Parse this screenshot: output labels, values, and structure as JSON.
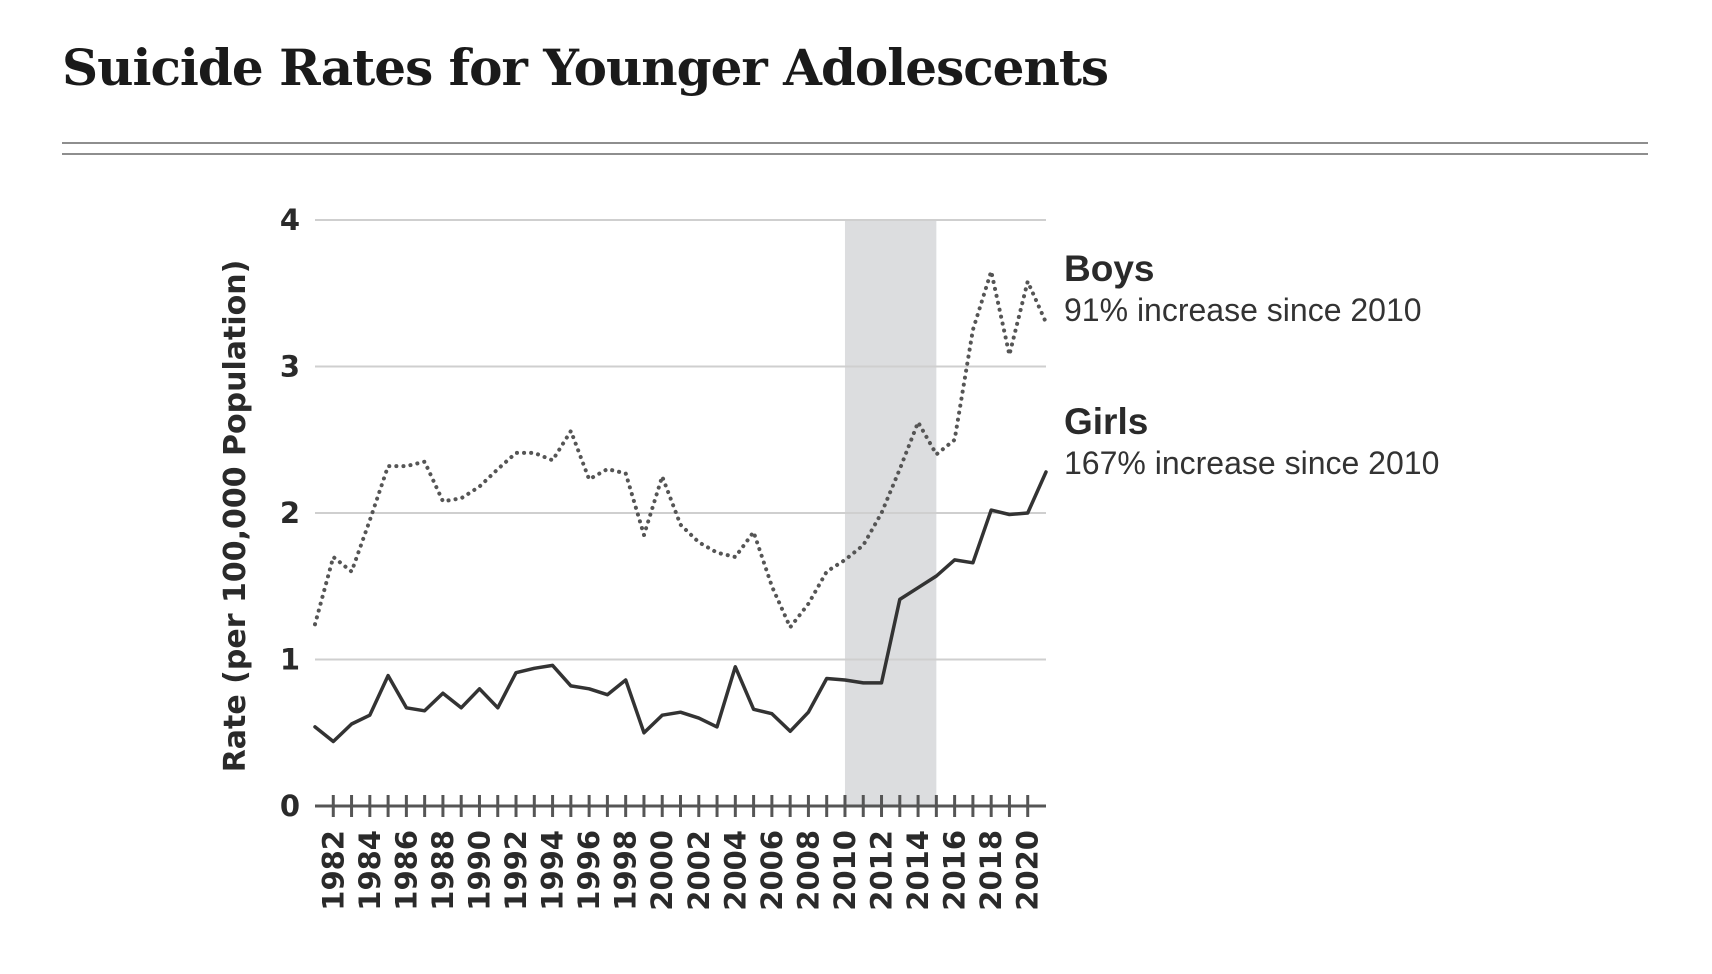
{
  "page": {
    "title": "Suicide Rates for Younger Adolescents"
  },
  "annotations": {
    "boys": {
      "name": "Boys",
      "note": "91% increase since 2010"
    },
    "girls": {
      "name": "Girls",
      "note": "167% increase since 2010"
    }
  },
  "chart_data": {
    "type": "line",
    "title": "Suicide Rates for Younger Adolescents",
    "xlabel": "",
    "ylabel": "Rate (per 100,000 Population)",
    "ylim": [
      0,
      4
    ],
    "yticks": [
      0,
      1,
      2,
      3,
      4
    ],
    "xlim": [
      1981,
      2021
    ],
    "xticks": [
      1982,
      1984,
      1986,
      1988,
      1990,
      1992,
      1994,
      1996,
      1998,
      2000,
      2002,
      2004,
      2006,
      2008,
      2010,
      2012,
      2014,
      2016,
      2018,
      2020
    ],
    "grid": true,
    "shaded_region": [
      2010,
      2015
    ],
    "x": [
      1981,
      1982,
      1983,
      1984,
      1985,
      1986,
      1987,
      1988,
      1989,
      1990,
      1991,
      1992,
      1993,
      1994,
      1995,
      1996,
      1997,
      1998,
      1999,
      2000,
      2001,
      2002,
      2003,
      2004,
      2005,
      2006,
      2007,
      2008,
      2009,
      2010,
      2011,
      2012,
      2013,
      2014,
      2015,
      2016,
      2017,
      2018,
      2019,
      2020,
      2021
    ],
    "series": [
      {
        "name": "Boys",
        "style": "dotted",
        "color": "#555555",
        "values": [
          1.24,
          1.7,
          1.6,
          1.95,
          2.32,
          2.32,
          2.35,
          2.08,
          2.1,
          2.18,
          2.3,
          2.41,
          2.41,
          2.36,
          2.56,
          2.23,
          2.3,
          2.27,
          1.85,
          2.25,
          1.92,
          1.8,
          1.73,
          1.7,
          1.87,
          1.5,
          1.22,
          1.38,
          1.6,
          1.68,
          1.78,
          2.0,
          2.3,
          2.62,
          2.4,
          2.5,
          3.25,
          3.65,
          3.08,
          3.58,
          3.3
        ]
      },
      {
        "name": "Girls",
        "style": "solid",
        "color": "#333333",
        "values": [
          0.54,
          0.44,
          0.56,
          0.62,
          0.89,
          0.67,
          0.65,
          0.77,
          0.67,
          0.8,
          0.67,
          0.91,
          0.94,
          0.96,
          0.82,
          0.8,
          0.76,
          0.86,
          0.5,
          0.62,
          0.64,
          0.6,
          0.54,
          0.95,
          0.66,
          0.63,
          0.51,
          0.64,
          0.87,
          0.86,
          0.84,
          0.84,
          1.41,
          1.49,
          1.57,
          1.68,
          1.66,
          2.02,
          1.99,
          2.0,
          2.28
        ]
      }
    ]
  }
}
